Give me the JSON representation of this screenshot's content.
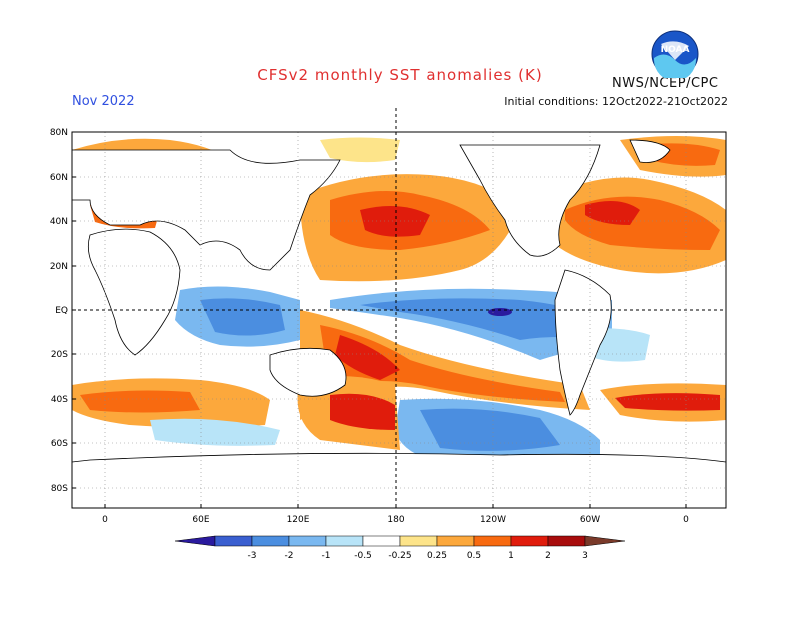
{
  "title": "CFSv2 monthly SST anomalies (K)",
  "month": "Nov 2022",
  "initial_conditions": "Initial conditions: 12Oct2022-21Oct2022",
  "agency": "NWS/NCEP/CPC",
  "logo": {
    "text": "NOAA"
  },
  "lat_ticks": [
    "80N",
    "60N",
    "40N",
    "20N",
    "EQ",
    "20S",
    "40S",
    "60S",
    "80S"
  ],
  "lon_ticks": [
    "0",
    "60E",
    "120E",
    "180",
    "120W",
    "60W",
    "0"
  ],
  "colorbar": {
    "ticks": [
      "-3",
      "-2",
      "-1",
      "-0.5",
      "-0.25",
      "0.25",
      "0.5",
      "1",
      "2",
      "3"
    ],
    "colors": [
      "#2a1a9e",
      "#3a5fd0",
      "#4b8ee0",
      "#7ab8f0",
      "#b8e4f8",
      "#ffffff",
      "#fde48a",
      "#fca83c",
      "#f86a10",
      "#e01c0c",
      "#a80c0c",
      "#7a3a2a"
    ]
  }
}
